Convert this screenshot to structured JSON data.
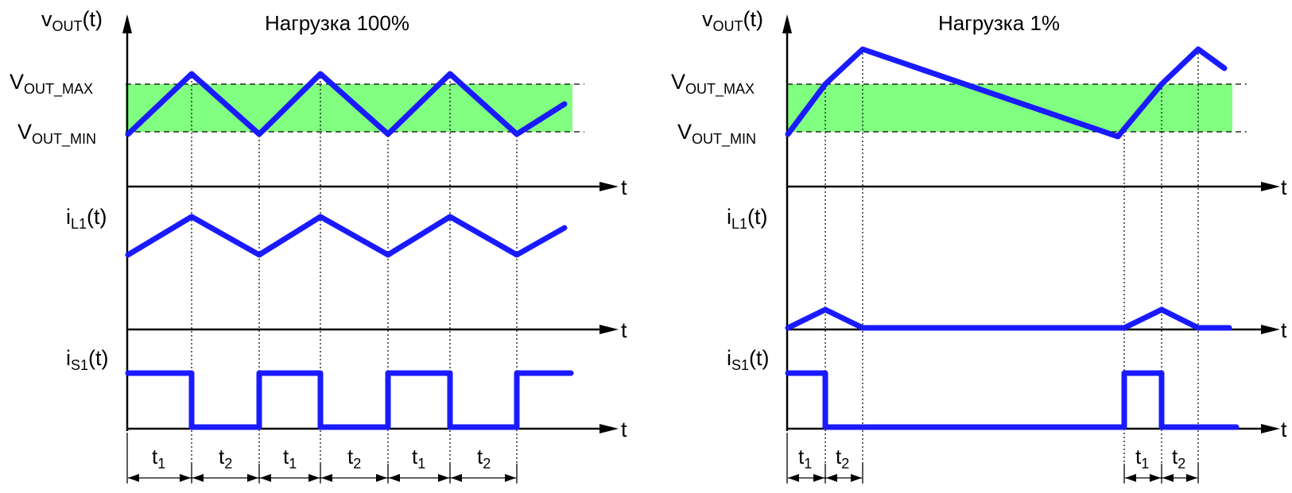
{
  "panels": [
    {
      "title": "Нагрузка 100%",
      "vout_label": {
        "main": "v",
        "sub": "OUT",
        "suffix": "(t)"
      },
      "vmax_label": {
        "main": "V",
        "sub": "OUT_MAX"
      },
      "vmin_label": {
        "main": "V",
        "sub": "OUT_MIN"
      },
      "il_label": {
        "main": "i",
        "sub": "L1",
        "suffix": "(t)"
      },
      "is_label": {
        "main": "i",
        "sub": "S1",
        "suffix": "(t)"
      },
      "axis_label": "t",
      "intervals": [
        {
          "main": "t",
          "sub": "1"
        },
        {
          "main": "t",
          "sub": "2"
        },
        {
          "main": "t",
          "sub": "1"
        },
        {
          "main": "t",
          "sub": "2"
        },
        {
          "main": "t",
          "sub": "1"
        },
        {
          "main": "t",
          "sub": "2"
        }
      ]
    },
    {
      "title": "Нагрузка 1%",
      "vout_label": {
        "main": "v",
        "sub": "OUT",
        "suffix": "(t)"
      },
      "vmax_label": {
        "main": "V",
        "sub": "OUT_MAX"
      },
      "vmin_label": {
        "main": "V",
        "sub": "OUT_MIN"
      },
      "il_label": {
        "main": "i",
        "sub": "L1",
        "suffix": "(t)"
      },
      "is_label": {
        "main": "i",
        "sub": "S1",
        "suffix": "(t)"
      },
      "axis_label": "t",
      "intervals": [
        {
          "main": "t",
          "sub": "1"
        },
        {
          "main": "t",
          "sub": "2"
        },
        {
          "main": "t",
          "sub": "1"
        },
        {
          "main": "t",
          "sub": "2"
        }
      ]
    }
  ],
  "colors": {
    "waveform": "#1a1aff",
    "band": "#80ff80",
    "axis": "#000000"
  }
}
